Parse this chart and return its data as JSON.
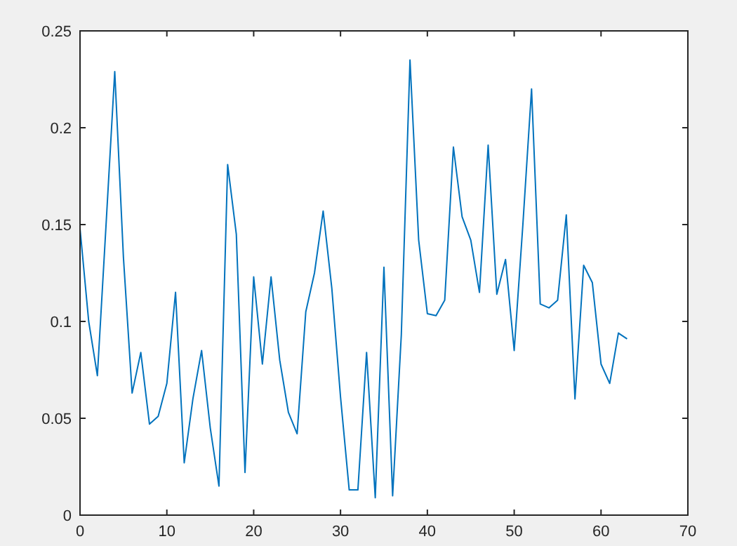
{
  "chart_data": {
    "type": "line",
    "xlim": [
      0,
      70
    ],
    "ylim": [
      0,
      0.25
    ],
    "xticks": [
      0,
      10,
      20,
      30,
      40,
      50,
      60,
      70
    ],
    "yticks": [
      0,
      0.05,
      0.1,
      0.15,
      0.2,
      0.25
    ],
    "grid": false,
    "marker": "none",
    "line_style": "solid",
    "series": [
      {
        "color": "#0072bd",
        "x": [
          0,
          1,
          2,
          3,
          4,
          5,
          6,
          7,
          8,
          9,
          10,
          11,
          12,
          13,
          14,
          15,
          16,
          17,
          18,
          19,
          20,
          21,
          22,
          23,
          24,
          25,
          26,
          27,
          28,
          29,
          30,
          31,
          32,
          33,
          34,
          35,
          36,
          37,
          38,
          39,
          40,
          41,
          42,
          43,
          44,
          45,
          46,
          47,
          48,
          49,
          50,
          51,
          52,
          53,
          54,
          55,
          56,
          57,
          58,
          59,
          60,
          61,
          62,
          63
        ],
        "values": [
          0.148,
          0.1,
          0.072,
          0.15,
          0.229,
          0.133,
          0.063,
          0.084,
          0.047,
          0.051,
          0.068,
          0.115,
          0.027,
          0.06,
          0.085,
          0.045,
          0.015,
          0.181,
          0.145,
          0.022,
          0.123,
          0.078,
          0.123,
          0.08,
          0.053,
          0.042,
          0.105,
          0.125,
          0.157,
          0.117,
          0.061,
          0.013,
          0.013,
          0.084,
          0.009,
          0.128,
          0.01,
          0.093,
          0.235,
          0.142,
          0.104,
          0.103,
          0.111,
          0.19,
          0.154,
          0.142,
          0.115,
          0.191,
          0.114,
          0.132,
          0.085,
          0.15,
          0.22,
          0.109,
          0.107,
          0.111,
          0.155,
          0.06,
          0.129,
          0.12,
          0.078,
          0.068,
          0.094,
          0.091
        ]
      }
    ]
  }
}
